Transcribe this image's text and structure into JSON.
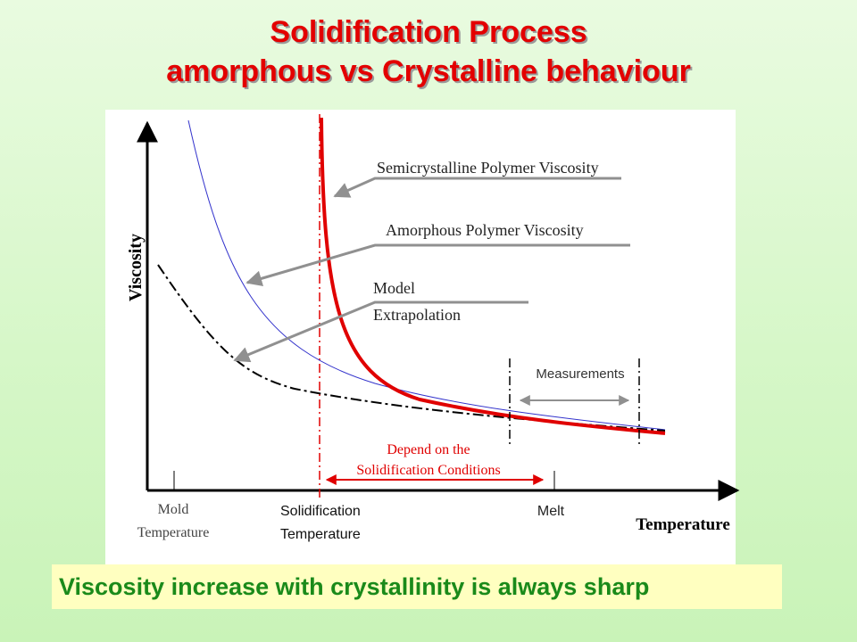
{
  "title": {
    "line1": "Solidification Process",
    "line2": "amorphous vs Crystalline behaviour"
  },
  "diagram": {
    "y_axis_label": "Viscosity",
    "x_axis_label": "Temperature",
    "labels": {
      "semicrystalline": "Semicrystalline Polymer Viscosity",
      "amorphous": "Amorphous Polymer Viscosity",
      "model_line1": "Model",
      "model_line2": "Extrapolation",
      "measurements": "Measurements",
      "depend_line1": "Depend on the",
      "depend_line2": "Solidification Conditions"
    },
    "ticks": {
      "mold_line1": "Mold",
      "mold_line2": "Temperature",
      "solid_line1": "Solidification",
      "solid_line2": "Temperature",
      "melt": "Melt"
    },
    "colors": {
      "semicrystalline_curve": "#e00000",
      "amorphous_curve": "#3333cc",
      "model_curve": "#000000",
      "callout_lines": "#909090",
      "annotation_red": "#e00000"
    }
  },
  "footer": {
    "statement": "Viscosity increase with crystallinity is always  sharp"
  }
}
